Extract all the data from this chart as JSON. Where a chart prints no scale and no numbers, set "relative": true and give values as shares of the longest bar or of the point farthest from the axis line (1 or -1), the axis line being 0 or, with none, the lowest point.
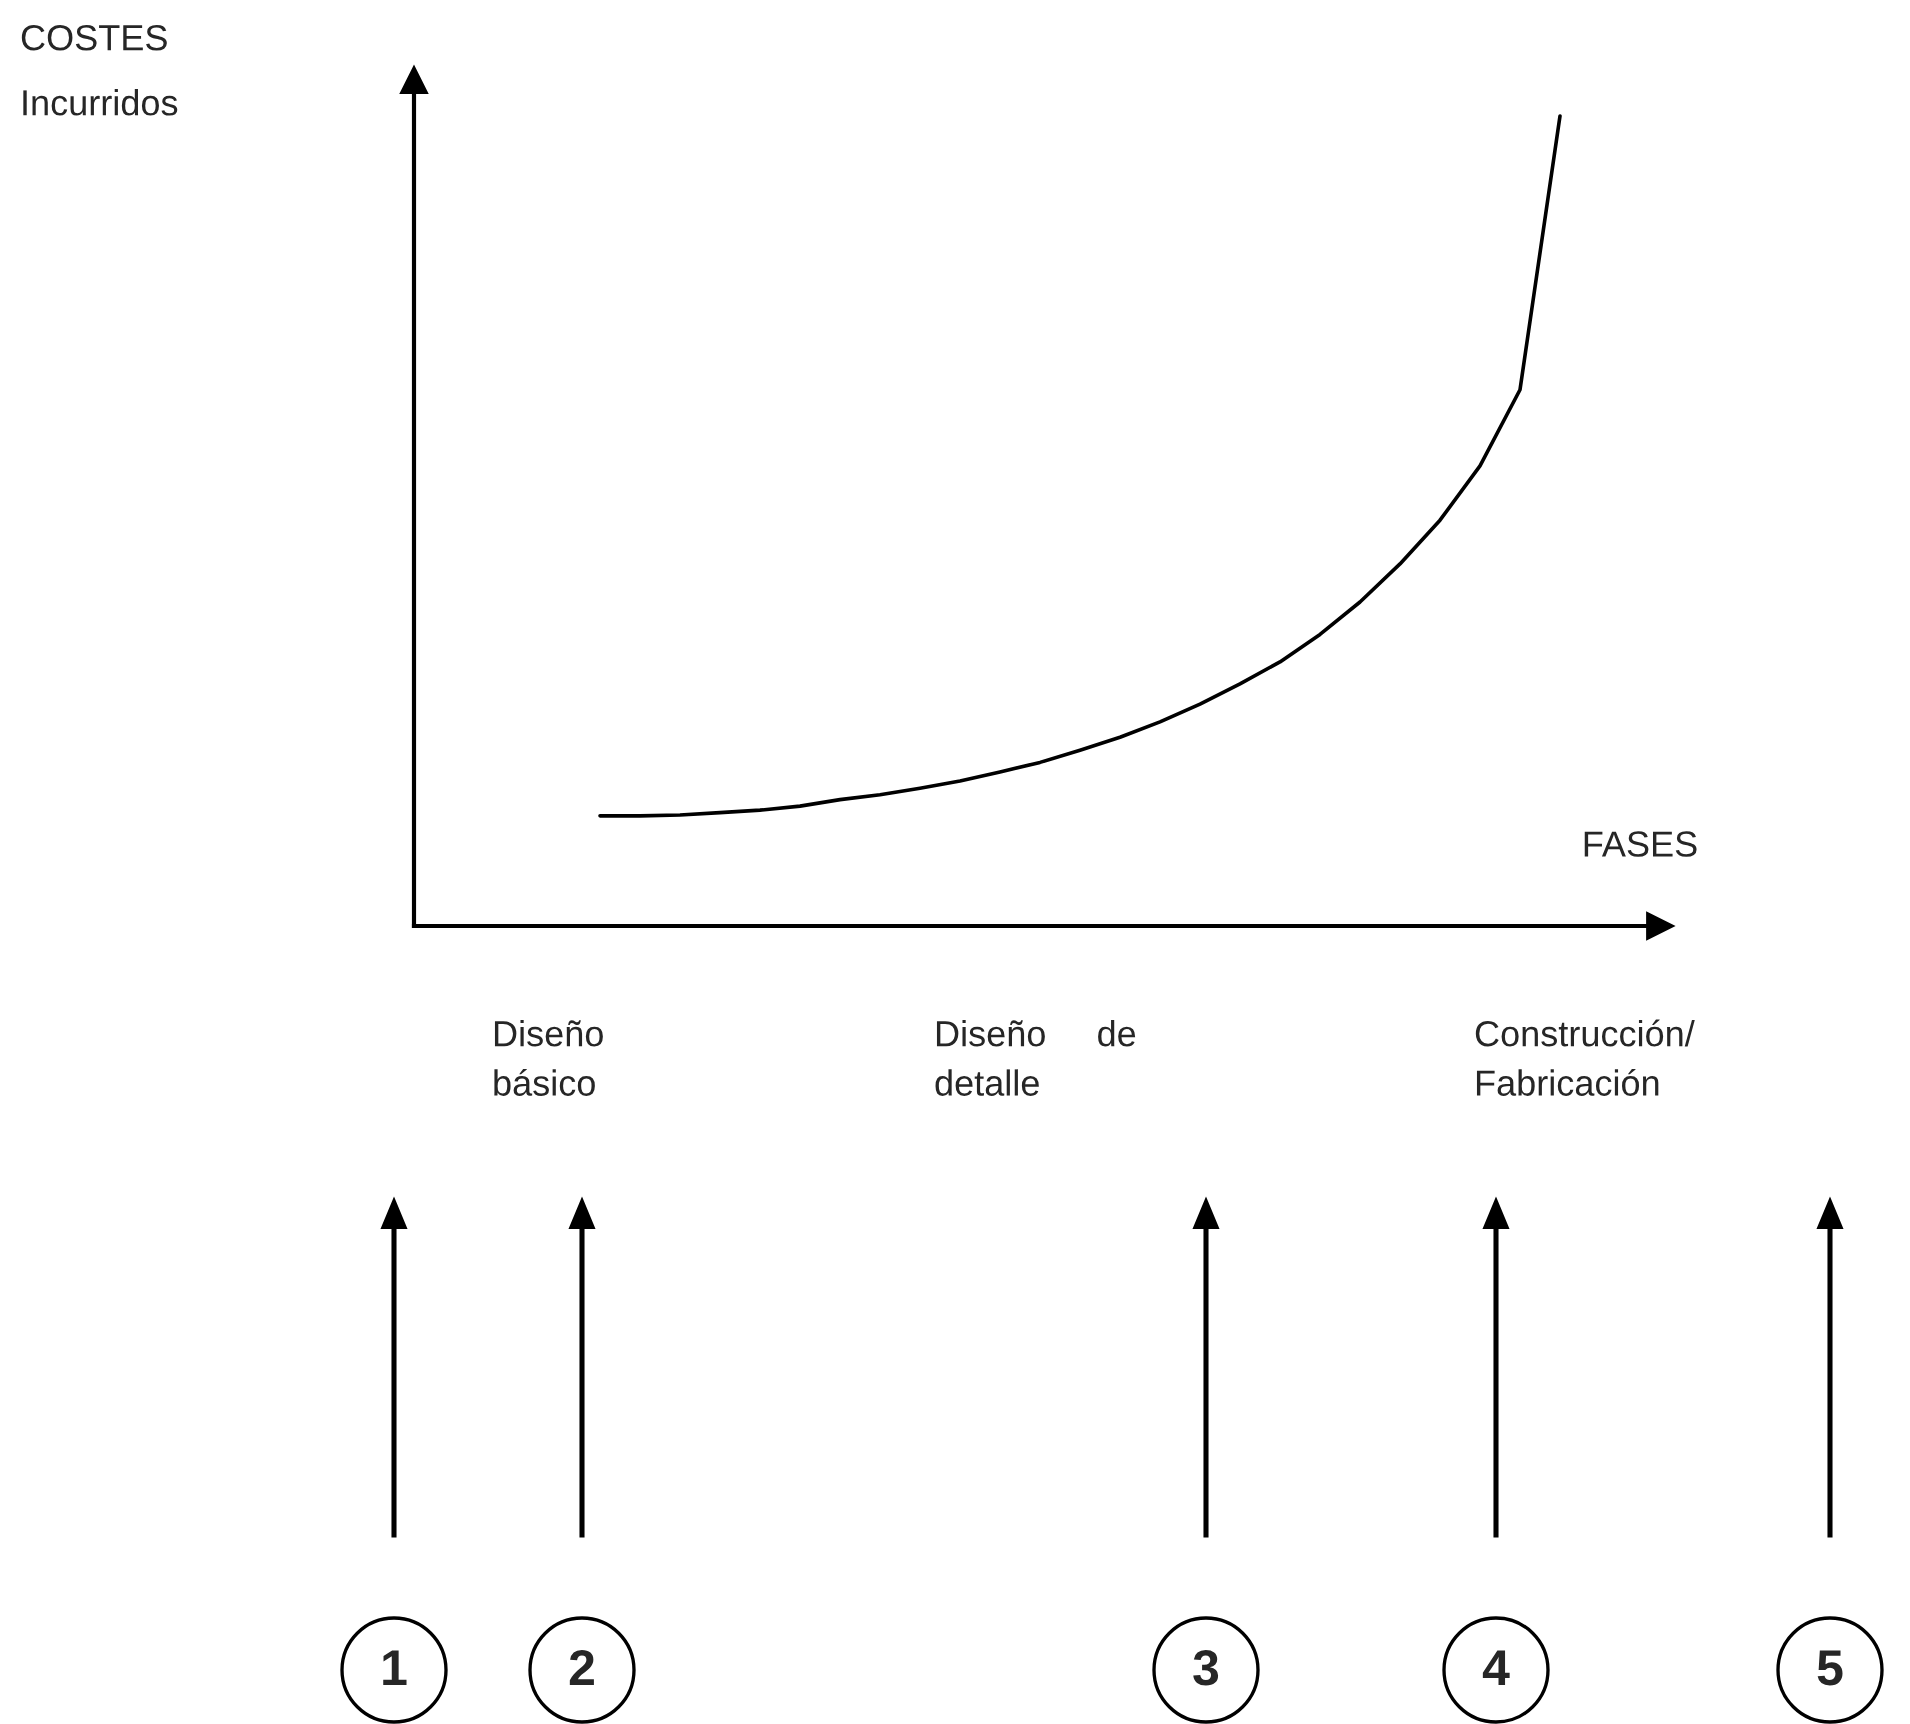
{
  "chart_data": {
    "type": "line",
    "relative": true,
    "xlabel": "FASES",
    "categories": [
      null,
      null,
      null,
      null,
      null,
      null,
      null,
      null,
      null,
      null,
      null,
      null,
      null,
      null,
      null,
      null,
      null,
      null,
      null,
      null,
      null,
      null,
      null,
      null,
      null
    ],
    "series": [
      {
        "color": "#000000",
        "values": [
          0.136,
          0.136,
          0.137,
          0.14,
          0.143,
          0.148,
          0.156,
          0.162,
          0.17,
          0.179,
          0.19,
          0.202,
          0.217,
          0.233,
          0.252,
          0.274,
          0.299,
          0.326,
          0.36,
          0.4,
          0.447,
          0.501,
          0.568,
          0.662,
          1.0
        ]
      }
    ],
    "annotations": [
      "COSTES\nIncurridos",
      "Diseño\nbásico",
      "Diseño     de\ndetalle",
      "Construcción/\nFabricación",
      "1",
      "2",
      "3",
      "4",
      "5"
    ],
    "legend": false,
    "marker": "none",
    "line_style": "solid"
  }
}
